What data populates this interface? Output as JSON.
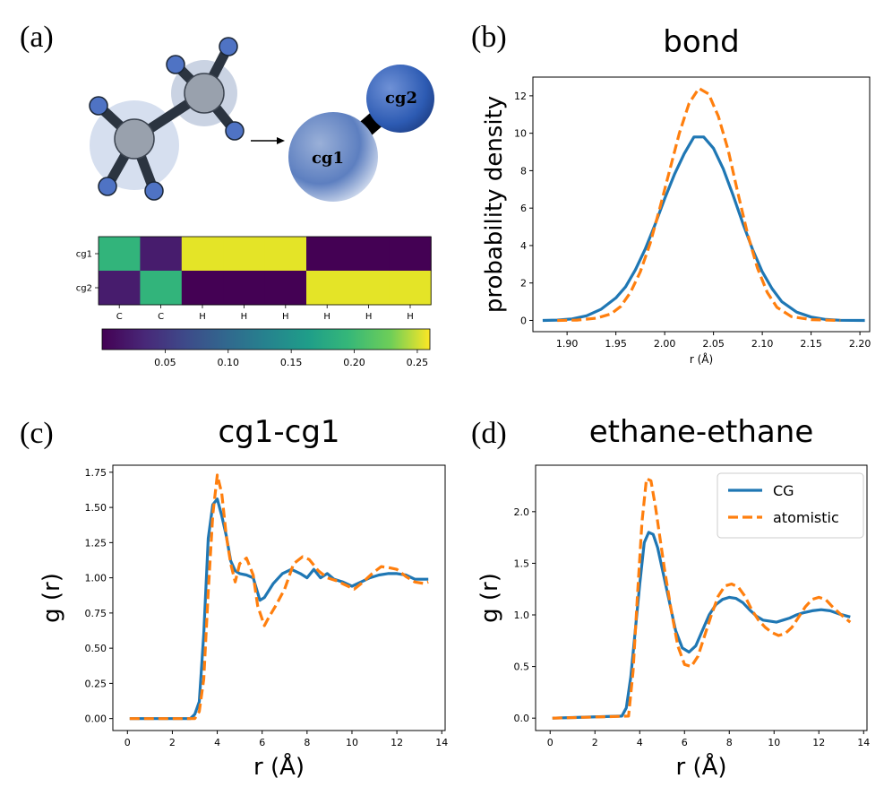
{
  "labels": {
    "a": "(a)",
    "b": "(b)",
    "c": "(c)",
    "d": "(d)"
  },
  "molecule": {
    "cg1": "cg1",
    "cg2": "cg2"
  },
  "heatmap": {
    "rows": [
      "cg1",
      "cg2"
    ],
    "cols": [
      "C",
      "C",
      "H",
      "H",
      "H",
      "H",
      "H",
      "H"
    ],
    "values": [
      [
        0.17,
        0.02,
        0.25,
        0.25,
        0.25,
        0.0,
        0.0,
        0.0
      ],
      [
        0.02,
        0.17,
        0.0,
        0.0,
        0.0,
        0.25,
        0.25,
        0.25
      ]
    ],
    "colorbar_ticks": [
      "0.05",
      "0.10",
      "0.15",
      "0.20",
      "0.25"
    ],
    "colorbar_range": [
      0,
      0.26
    ],
    "colormap": "viridis"
  },
  "colors": {
    "cg": "#1f77b4",
    "atomistic": "#ff7f0e"
  },
  "chart_data": [
    {
      "type": "line",
      "title": "bond",
      "xlabel": "r (Å)",
      "ylabel": "probability density",
      "xlim": [
        1.865,
        2.21
      ],
      "ylim": [
        -0.6,
        13.0
      ],
      "xticks": [
        1.9,
        1.95,
        2.0,
        2.05,
        2.1,
        2.15,
        2.2
      ],
      "xtick_labels": [
        "1.90",
        "1.95",
        "2.00",
        "2.05",
        "2.10",
        "2.15",
        "2.20"
      ],
      "yticks": [
        0,
        2,
        4,
        6,
        8,
        10,
        12
      ],
      "ytick_labels": [
        "0",
        "2",
        "4",
        "6",
        "8",
        "10",
        "12"
      ],
      "series": [
        {
          "style": "solid",
          "color": "#1f77b4",
          "x": [
            1.875,
            1.89,
            1.905,
            1.92,
            1.935,
            1.95,
            1.96,
            1.97,
            1.98,
            1.99,
            2.0,
            2.01,
            2.02,
            2.03,
            2.04,
            2.05,
            2.06,
            2.07,
            2.08,
            2.09,
            2.1,
            2.11,
            2.12,
            2.135,
            2.15,
            2.165,
            2.18,
            2.205
          ],
          "y": [
            0.0,
            0.02,
            0.08,
            0.25,
            0.6,
            1.2,
            1.8,
            2.7,
            3.8,
            5.1,
            6.5,
            7.8,
            8.9,
            9.8,
            9.8,
            9.2,
            8.1,
            6.7,
            5.2,
            3.8,
            2.6,
            1.7,
            1.0,
            0.45,
            0.18,
            0.05,
            0.01,
            0.0
          ]
        },
        {
          "style": "dashed",
          "color": "#ff7f0e",
          "x": [
            1.89,
            1.91,
            1.93,
            1.945,
            1.955,
            1.965,
            1.975,
            1.985,
            1.995,
            2.005,
            2.015,
            2.025,
            2.035,
            2.045,
            2.055,
            2.065,
            2.075,
            2.085,
            2.095,
            2.105,
            2.115,
            2.13,
            2.15,
            2.18
          ],
          "y": [
            0.0,
            0.02,
            0.12,
            0.35,
            0.75,
            1.5,
            2.6,
            4.1,
            6.0,
            8.0,
            10.0,
            11.6,
            12.4,
            12.1,
            10.9,
            9.1,
            6.8,
            4.6,
            2.8,
            1.5,
            0.7,
            0.2,
            0.04,
            0.0
          ]
        }
      ]
    },
    {
      "type": "line",
      "title": "cg1-cg1",
      "xlabel": "r (Å)",
      "ylabel": "g (r)",
      "xlim": [
        -0.65,
        14.15
      ],
      "ylim": [
        -0.085,
        1.8
      ],
      "xticks": [
        0,
        2,
        4,
        6,
        8,
        10,
        12,
        14
      ],
      "xtick_labels": [
        "0",
        "2",
        "4",
        "6",
        "8",
        "10",
        "12",
        "14"
      ],
      "yticks": [
        0.0,
        0.25,
        0.5,
        0.75,
        1.0,
        1.25,
        1.5,
        1.75
      ],
      "ytick_labels": [
        "0.00",
        "0.25",
        "0.50",
        "0.75",
        "1.00",
        "1.25",
        "1.50",
        "1.75"
      ],
      "series": [
        {
          "style": "solid",
          "color": "#1f77b4",
          "x": [
            0.1,
            2.8,
            3.0,
            3.2,
            3.4,
            3.6,
            3.8,
            4.0,
            4.2,
            4.4,
            4.6,
            4.8,
            5.0,
            5.3,
            5.6,
            5.9,
            6.1,
            6.5,
            6.9,
            7.3,
            7.7,
            8.0,
            8.3,
            8.6,
            8.9,
            9.2,
            9.6,
            10.0,
            10.4,
            10.8,
            11.2,
            11.6,
            12.0,
            12.4,
            12.8,
            13.1,
            13.4
          ],
          "y": [
            0.0,
            0.0,
            0.03,
            0.12,
            0.6,
            1.28,
            1.52,
            1.56,
            1.44,
            1.3,
            1.12,
            1.05,
            1.03,
            1.02,
            1.0,
            0.84,
            0.86,
            0.96,
            1.03,
            1.06,
            1.03,
            1.0,
            1.06,
            1.0,
            1.03,
            0.99,
            0.97,
            0.94,
            0.97,
            1.0,
            1.02,
            1.03,
            1.03,
            1.02,
            0.99,
            0.99,
            0.99
          ]
        },
        {
          "style": "dashed",
          "color": "#ff7f0e",
          "x": [
            0.1,
            3.0,
            3.2,
            3.4,
            3.6,
            3.8,
            4.0,
            4.2,
            4.4,
            4.6,
            4.8,
            5.0,
            5.3,
            5.6,
            5.8,
            6.1,
            6.3,
            6.6,
            7.0,
            7.4,
            7.8,
            8.1,
            8.5,
            8.9,
            9.3,
            9.7,
            10.1,
            10.5,
            10.9,
            11.3,
            11.7,
            12.0,
            12.4,
            12.8,
            13.2,
            13.4
          ],
          "y": [
            0.0,
            0.0,
            0.05,
            0.28,
            0.9,
            1.45,
            1.73,
            1.6,
            1.3,
            1.1,
            0.97,
            1.1,
            1.14,
            1.02,
            0.8,
            0.66,
            0.72,
            0.8,
            0.92,
            1.1,
            1.15,
            1.13,
            1.05,
            1.0,
            0.98,
            0.95,
            0.92,
            0.97,
            1.03,
            1.08,
            1.07,
            1.06,
            1.01,
            0.97,
            0.96,
            0.97
          ]
        }
      ]
    },
    {
      "type": "line",
      "title": "ethane-ethane",
      "xlabel": "r (Å)",
      "ylabel": "g (r)",
      "xlim": [
        -0.65,
        14.15
      ],
      "ylim": [
        -0.12,
        2.45
      ],
      "xticks": [
        0,
        2,
        4,
        6,
        8,
        10,
        12,
        14
      ],
      "xtick_labels": [
        "0",
        "2",
        "4",
        "6",
        "8",
        "10",
        "12",
        "14"
      ],
      "yticks": [
        0.0,
        0.5,
        1.0,
        1.5,
        2.0
      ],
      "ytick_labels": [
        "0.0",
        "0.5",
        "1.0",
        "1.5",
        "2.0"
      ],
      "legend": {
        "position": "top-right",
        "entries": [
          "CG",
          "atomistic"
        ]
      },
      "series": [
        {
          "name": "CG",
          "style": "solid",
          "color": "#1f77b4",
          "x": [
            0.1,
            3.2,
            3.4,
            3.6,
            3.8,
            4.0,
            4.2,
            4.4,
            4.6,
            4.8,
            5.0,
            5.3,
            5.6,
            5.9,
            6.2,
            6.5,
            6.8,
            7.1,
            7.4,
            7.7,
            8.0,
            8.3,
            8.6,
            8.9,
            9.2,
            9.5,
            9.8,
            10.1,
            10.4,
            10.7,
            11.0,
            11.3,
            11.7,
            12.1,
            12.5,
            12.9,
            13.4
          ],
          "y": [
            0.0,
            0.02,
            0.1,
            0.4,
            0.85,
            1.3,
            1.7,
            1.8,
            1.78,
            1.65,
            1.45,
            1.15,
            0.85,
            0.68,
            0.64,
            0.7,
            0.85,
            1.0,
            1.1,
            1.15,
            1.17,
            1.16,
            1.12,
            1.05,
            0.99,
            0.95,
            0.94,
            0.93,
            0.95,
            0.97,
            1.0,
            1.02,
            1.04,
            1.05,
            1.04,
            1.01,
            0.98
          ]
        },
        {
          "name": "atomistic",
          "style": "dashed",
          "color": "#ff7f0e",
          "x": [
            0.1,
            3.5,
            3.7,
            3.9,
            4.1,
            4.3,
            4.5,
            4.7,
            4.9,
            5.1,
            5.4,
            5.7,
            6.0,
            6.3,
            6.6,
            6.9,
            7.2,
            7.5,
            7.8,
            8.1,
            8.4,
            8.7,
            9.0,
            9.3,
            9.6,
            9.9,
            10.2,
            10.5,
            10.8,
            11.1,
            11.4,
            11.7,
            12.0,
            12.3,
            12.6,
            13.0,
            13.4
          ],
          "y": [
            0.0,
            0.02,
            0.45,
            1.2,
            1.9,
            2.32,
            2.3,
            2.05,
            1.75,
            1.45,
            1.05,
            0.7,
            0.52,
            0.5,
            0.6,
            0.8,
            1.0,
            1.18,
            1.28,
            1.3,
            1.27,
            1.18,
            1.05,
            0.95,
            0.88,
            0.83,
            0.8,
            0.82,
            0.88,
            0.98,
            1.08,
            1.15,
            1.17,
            1.15,
            1.08,
            1.0,
            0.93
          ]
        }
      ]
    }
  ]
}
